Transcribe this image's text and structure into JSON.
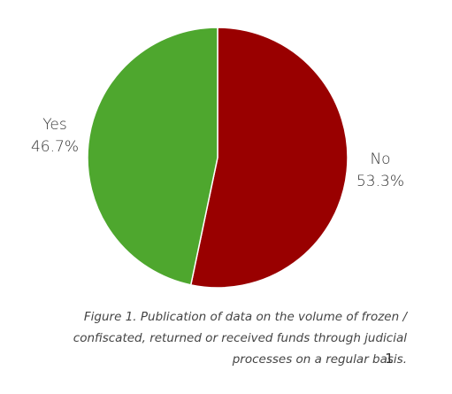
{
  "chart_data": {
    "type": "pie",
    "categories": [
      "No",
      "Yes"
    ],
    "values": [
      53.3,
      46.7
    ],
    "value_labels": [
      "53.3%",
      "46.7%"
    ],
    "colors": [
      "#990000",
      "#4ea72e"
    ],
    "caption": [
      "Figure 1. Publication of data on the volume of frozen /",
      "confiscated, returned or received funds through judicial",
      "processes on a regular basis."
    ],
    "page_number": "1"
  }
}
